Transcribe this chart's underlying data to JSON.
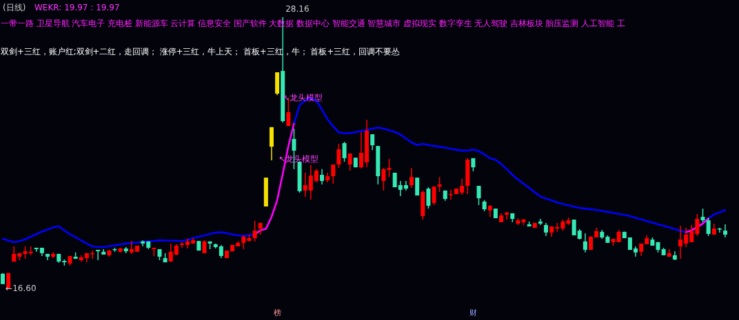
{
  "chart_data": {
    "type": "candlestick",
    "title": "(日线)",
    "subtitle": "WEKR: 19.97 : 19.97",
    "categories": [
      null,
      null,
      null,
      null,
      null,
      null,
      null,
      null,
      null,
      null,
      null,
      null,
      null,
      null,
      null,
      null,
      null,
      null,
      null,
      null,
      null,
      null,
      null,
      null,
      null,
      null,
      null,
      null,
      null,
      null,
      null,
      null,
      null,
      null,
      null,
      null,
      null,
      null,
      null,
      null,
      null,
      null,
      null,
      null,
      null,
      null,
      null,
      null,
      null,
      null,
      null,
      null,
      null,
      null,
      null,
      null,
      null,
      null,
      null,
      null,
      null,
      null,
      null,
      null,
      null,
      null,
      null,
      null,
      null,
      null,
      null,
      null,
      null,
      null,
      null,
      null,
      null,
      null,
      null,
      null,
      null,
      null,
      null,
      null,
      null,
      null,
      null,
      null,
      null,
      null,
      null,
      null,
      null,
      null,
      null,
      null,
      null,
      null,
      null,
      null,
      null,
      null,
      null,
      null,
      null,
      null,
      null,
      null,
      null,
      null,
      null,
      null,
      null,
      null,
      null,
      null,
      null,
      null,
      null,
      null,
      null,
      null,
      null,
      null,
      null,
      null,
      null,
      null,
      null,
      null
    ],
    "ohlc": [
      [
        17.22,
        17.25,
        16.78,
        16.78
      ],
      [
        16.6,
        17.25,
        16.6,
        17.25
      ],
      [
        17.74,
        18.39,
        17.74,
        18.07
      ],
      [
        17.95,
        18.1,
        17.8,
        18.1
      ],
      [
        18.07,
        18.39,
        17.86,
        18.18
      ],
      [
        18.1,
        18.39,
        18.01,
        18.16
      ],
      [
        18.33,
        18.33,
        18.16,
        18.27
      ],
      [
        18.33,
        18.33,
        17.98,
        18.1
      ],
      [
        18.07,
        18.07,
        17.8,
        17.95
      ],
      [
        17.95,
        18.13,
        17.89,
        18.07
      ],
      [
        18.07,
        18.07,
        17.69,
        17.74
      ],
      [
        17.77,
        17.83,
        17.57,
        17.71
      ],
      [
        17.66,
        17.98,
        17.57,
        17.98
      ],
      [
        17.95,
        18.13,
        17.86,
        17.86
      ],
      [
        17.8,
        18.01,
        17.74,
        17.92
      ],
      [
        17.89,
        18.1,
        17.71,
        18.1
      ],
      [
        18.07,
        18.21,
        17.86,
        18.1
      ],
      [
        18.24,
        18.24,
        17.8,
        18.18
      ],
      [
        18.16,
        18.27,
        18.04,
        18.04
      ],
      [
        18.01,
        18.24,
        17.95,
        18.21
      ],
      [
        18.27,
        18.33,
        18.16,
        18.24
      ],
      [
        18.16,
        18.33,
        18.13,
        18.3
      ],
      [
        18.3,
        18.36,
        18.1,
        18.18
      ],
      [
        18.13,
        18.62,
        18.07,
        18.27
      ],
      [
        18.16,
        18.42,
        18.16,
        18.42
      ],
      [
        18.6,
        18.65,
        18.39,
        18.51
      ],
      [
        18.6,
        18.6,
        18.27,
        18.33
      ],
      [
        18.27,
        18.33,
        17.98,
        18.33
      ],
      [
        18.27,
        18.27,
        17.8,
        17.95
      ],
      [
        17.89,
        18.1,
        17.71,
        17.71
      ],
      [
        17.74,
        18.51,
        17.74,
        18.16
      ],
      [
        18.04,
        18.48,
        18.01,
        18.42
      ],
      [
        18.45,
        18.57,
        18.33,
        18.51
      ],
      [
        18.45,
        18.71,
        18.3,
        18.6
      ],
      [
        18.51,
        18.74,
        18.51,
        18.65
      ],
      [
        18.62,
        18.62,
        18.21,
        18.21
      ],
      [
        18.1,
        18.65,
        18.1,
        18.6
      ],
      [
        18.6,
        18.6,
        18.27,
        18.51
      ],
      [
        18.48,
        18.51,
        18.3,
        18.36
      ],
      [
        18.39,
        18.45,
        17.89,
        17.98
      ],
      [
        17.89,
        18.21,
        17.89,
        18.21
      ],
      [
        18.18,
        18.45,
        18.18,
        18.45
      ],
      [
        18.39,
        18.6,
        18.39,
        18.54
      ],
      [
        18.54,
        18.86,
        18.27,
        18.8
      ],
      [
        18.62,
        18.89,
        18.6,
        18.74
      ],
      [
        18.74,
        19.48,
        18.6,
        19.06
      ],
      [
        19.15,
        19.39,
        18.89,
        19.39
      ],
      [
        20.09,
        21.32,
        20.09,
        21.32
      ],
      [
        22.64,
        23.47,
        22.06,
        23.47
      ],
      [
        24.9,
        25.81,
        24.84,
        25.81
      ],
      [
        25.87,
        28.16,
        23.67,
        23.73
      ],
      [
        23.52,
        24.73,
        23.52,
        24.11
      ],
      [
        22.97,
        23.41,
        21.68,
        22.47
      ],
      [
        22.0,
        22.0,
        20.68,
        20.74
      ],
      [
        20.77,
        21.53,
        20.5,
        21.0
      ],
      [
        20.77,
        21.85,
        20.38,
        21.41
      ],
      [
        21.18,
        21.68,
        21.12,
        21.62
      ],
      [
        21.44,
        21.68,
        21.03,
        21.18
      ],
      [
        21.21,
        21.53,
        21.12,
        21.38
      ],
      [
        21.38,
        21.88,
        21.06,
        21.88
      ],
      [
        21.88,
        22.76,
        21.73,
        22.53
      ],
      [
        22.79,
        22.85,
        22.0,
        22.15
      ],
      [
        21.88,
        22.35,
        21.62,
        22.35
      ],
      [
        22.17,
        22.17,
        21.76,
        21.76
      ],
      [
        21.76,
        23.26,
        21.71,
        22.38
      ],
      [
        21.97,
        23.79,
        21.76,
        23.32
      ],
      [
        23.17,
        23.17,
        22.5,
        22.7
      ],
      [
        22.67,
        22.67,
        21.03,
        21.38
      ],
      [
        21.18,
        21.73,
        20.77,
        21.68
      ],
      [
        21.65,
        22.12,
        21.35,
        21.73
      ],
      [
        21.53,
        21.53,
        20.91,
        20.91
      ],
      [
        21.0,
        21.18,
        20.53,
        20.8
      ],
      [
        21.0,
        21.18,
        20.77,
        20.85
      ],
      [
        21.0,
        21.73,
        20.88,
        21.35
      ],
      [
        21.32,
        21.32,
        20.56,
        20.56
      ],
      [
        19.68,
        20.77,
        19.53,
        20.71
      ],
      [
        20.85,
        20.91,
        20.0,
        20.12
      ],
      [
        20.24,
        20.94,
        20.15,
        20.94
      ],
      [
        20.94,
        21.35,
        20.71,
        21.03
      ],
      [
        20.77,
        20.77,
        20.33,
        20.41
      ],
      [
        20.59,
        20.8,
        20.38,
        20.62
      ],
      [
        20.62,
        20.85,
        20.62,
        20.85
      ],
      [
        20.68,
        21.27,
        20.59,
        20.97
      ],
      [
        20.97,
        22.15,
        20.62,
        22.09
      ],
      [
        22.15,
        22.15,
        21.59,
        21.76
      ],
      [
        20.97,
        20.97,
        20.15,
        20.44
      ],
      [
        20.3,
        20.36,
        19.89,
        19.97
      ],
      [
        19.92,
        20.15,
        19.65,
        20.12
      ],
      [
        20.0,
        20.0,
        19.59,
        19.59
      ],
      [
        19.42,
        19.8,
        19.42,
        19.71
      ],
      [
        19.74,
        19.86,
        19.53,
        19.83
      ],
      [
        19.8,
        19.8,
        19.42,
        19.56
      ],
      [
        19.36,
        19.59,
        19.3,
        19.5
      ],
      [
        19.42,
        19.56,
        19.3,
        19.53
      ],
      [
        19.33,
        19.45,
        19.24,
        19.24
      ],
      [
        19.18,
        19.39,
        19.18,
        19.39
      ],
      [
        19.45,
        19.56,
        19.3,
        19.36
      ],
      [
        19.3,
        19.39,
        18.83,
        18.98
      ],
      [
        18.98,
        19.24,
        18.8,
        19.24
      ],
      [
        19.15,
        19.39,
        19.01,
        19.21
      ],
      [
        19.15,
        19.53,
        19.06,
        19.45
      ],
      [
        19.36,
        19.62,
        19.3,
        19.5
      ],
      [
        19.53,
        19.53,
        18.86,
        18.86
      ],
      [
        19.06,
        19.12,
        18.68,
        18.71
      ],
      [
        18.6,
        18.95,
        18.13,
        18.24
      ],
      [
        18.24,
        18.83,
        18.24,
        18.8
      ],
      [
        18.77,
        19.18,
        18.77,
        19.04
      ],
      [
        19.01,
        19.09,
        18.71,
        18.77
      ],
      [
        18.8,
        18.86,
        18.54,
        18.54
      ],
      [
        18.57,
        18.71,
        18.42,
        18.71
      ],
      [
        18.57,
        19.09,
        18.57,
        19.01
      ],
      [
        19.01,
        19.01,
        18.74,
        18.74
      ],
      [
        18.77,
        18.77,
        18.24,
        18.24
      ],
      [
        18.3,
        18.39,
        17.95,
        18.13
      ],
      [
        18.16,
        18.51,
        17.98,
        18.51
      ],
      [
        18.48,
        18.86,
        18.48,
        18.74
      ],
      [
        18.68,
        18.77,
        18.42,
        18.42
      ],
      [
        18.57,
        18.57,
        18.13,
        18.24
      ],
      [
        18.27,
        18.33,
        18.01,
        18.01
      ],
      [
        17.95,
        18.27,
        17.95,
        18.1
      ],
      [
        18.01,
        18.18,
        17.8,
        17.83
      ],
      [
        18.39,
        19.27,
        17.86,
        18.68
      ],
      [
        18.51,
        19.18,
        18.36,
        18.89
      ],
      [
        18.57,
        19.3,
        18.57,
        19.04
      ],
      [
        18.92,
        19.77,
        18.83,
        19.56
      ],
      [
        19.65,
        20.0,
        19.42,
        19.5
      ],
      [
        19.5,
        19.59,
        18.83,
        18.92
      ],
      [
        18.89,
        19.36,
        18.89,
        19.15
      ],
      [
        19.15,
        19.18,
        18.98,
        19.12
      ],
      [
        19.06,
        19.33,
        18.77,
        18.89
      ]
    ],
    "colors": [
      "#35e8b4",
      "#ff0000",
      "#ff0000",
      "#ff0000",
      "#ff0000",
      "#ff0000",
      "#35e8b4",
      "#35e8b4",
      "#35e8b4",
      "#ff0000",
      "#35e8b4",
      "#35e8b4",
      "#ff0000",
      "#35e8b4",
      "#ff0000",
      "#ff0000",
      "#ff0000",
      "#35e8b4",
      "#35e8b4",
      "#ff0000",
      "#35e8b4",
      "#ff0000",
      "#35e8b4",
      "#ff0000",
      "#ff0000",
      "#35e8b4",
      "#35e8b4",
      "#ff0000",
      "#35e8b4",
      "#35e8b4",
      "#ff0000",
      "#ff0000",
      "#ff0000",
      "#ff0000",
      "#ff0000",
      "#35e8b4",
      "#ff0000",
      "#35e8b4",
      "#35e8b4",
      "#35e8b4",
      "#ff0000",
      "#ff0000",
      "#ff0000",
      "#ff0000",
      "#ff0000",
      "#ff0000",
      "#ff0000",
      "#f5e000",
      "#f5e000",
      "#f5e000",
      "#35e8b4",
      "#ff0000",
      "#35e8b4",
      "#35e8b4",
      "#ff0000",
      "#ff0000",
      "#ff0000",
      "#35e8b4",
      "#ff0000",
      "#ff0000",
      "#ff0000",
      "#35e8b4",
      "#ff0000",
      "#35e8b4",
      "#ff0000",
      "#ff0000",
      "#35e8b4",
      "#35e8b4",
      "#ff0000",
      "#ff0000",
      "#35e8b4",
      "#35e8b4",
      "#35e8b4",
      "#ff0000",
      "#35e8b4",
      "#ff0000",
      "#35e8b4",
      "#ff0000",
      "#ff0000",
      "#35e8b4",
      "#ff0000",
      "#ff0000",
      "#ff0000",
      "#ff0000",
      "#35e8b4",
      "#35e8b4",
      "#35e8b4",
      "#ff0000",
      "#35e8b4",
      "#ff0000",
      "#ff0000",
      "#35e8b4",
      "#ff0000",
      "#ff0000",
      "#35e8b4",
      "#ff0000",
      "#35e8b4",
      "#35e8b4",
      "#ff0000",
      "#ff0000",
      "#ff0000",
      "#ff0000",
      "#35e8b4",
      "#35e8b4",
      "#35e8b4",
      "#ff0000",
      "#ff0000",
      "#35e8b4",
      "#35e8b4",
      "#ff0000",
      "#ff0000",
      "#35e8b4",
      "#35e8b4",
      "#35e8b4",
      "#ff0000",
      "#ff0000",
      "#35e8b4",
      "#35e8b4",
      "#35e8b4",
      "#ff0000",
      "#35e8b4",
      "#ff0000",
      "#ff0000",
      "#ff0000",
      "#ff0000",
      "#35e8b4",
      "#35e8b4",
      "#ff0000",
      "#35e8b4",
      "#35e8b4"
    ],
    "series": [
      {
        "type": "line",
        "color": "#0000ff",
        "values": [
          18.71,
          18.64,
          18.57,
          18.62,
          18.69,
          18.8,
          18.91,
          19.02,
          19.11,
          19.2,
          19.25,
          19.07,
          18.91,
          18.78,
          18.64,
          18.51,
          18.39,
          18.37,
          18.36,
          18.4,
          18.43,
          18.47,
          18.51,
          18.53,
          18.55,
          18.58,
          18.6,
          18.62,
          18.65,
          18.64,
          18.64,
          18.63,
          18.62,
          18.67,
          18.74,
          18.8,
          18.86,
          18.92,
          18.98,
          18.99,
          18.95,
          18.9,
          18.86,
          18.84,
          18.87,
          18.91,
          null,
          null,
          null,
          null,
          null,
          null,
          23.62,
          24.41,
          24.61,
          24.72,
          24.6,
          24.22,
          23.8,
          23.51,
          23.25,
          23.21,
          23.22,
          23.26,
          23.3,
          23.35,
          23.41,
          23.46,
          23.41,
          23.34,
          23.27,
          23.16,
          22.99,
          22.82,
          22.71,
          22.76,
          22.71,
          22.67,
          22.64,
          22.6,
          22.55,
          22.51,
          22.47,
          22.47,
          22.52,
          22.45,
          22.3,
          22.15,
          22.08,
          21.9,
          21.68,
          21.44,
          21.24,
          21.06,
          20.88,
          20.69,
          20.52,
          20.43,
          20.35,
          20.26,
          20.19,
          20.14,
          20.08,
          20.03,
          20.0,
          19.97,
          19.94,
          19.9,
          19.86,
          19.82,
          19.77,
          19.73,
          19.68,
          19.61,
          19.54,
          19.47,
          19.4,
          19.33,
          19.27,
          19.2,
          19.12,
          19.05,
          18.99,
          19.08,
          19.21,
          19.36,
          19.58,
          19.75,
          19.84,
          19.94
        ]
      },
      {
        "type": "line",
        "color": "#ff00ff",
        "values": [
          null,
          null,
          null,
          null,
          null,
          null,
          null,
          null,
          null,
          null,
          null,
          null,
          null,
          null,
          null,
          null,
          null,
          null,
          null,
          null,
          null,
          null,
          null,
          null,
          null,
          null,
          null,
          null,
          null,
          null,
          null,
          null,
          null,
          null,
          null,
          null,
          null,
          null,
          null,
          null,
          null,
          null,
          null,
          null,
          null,
          18.91,
          19.07,
          19.14,
          19.65,
          20.36,
          21.48,
          22.66,
          23.62,
          null,
          null,
          null,
          null,
          null,
          null,
          null,
          null,
          null,
          null,
          null,
          null,
          null,
          null,
          null,
          null,
          null,
          null,
          null,
          null,
          null,
          null,
          null,
          null,
          null,
          null,
          null,
          null,
          null,
          null,
          null,
          null,
          null,
          null,
          null,
          null,
          null,
          null,
          null,
          null,
          null,
          null,
          null,
          null,
          null,
          null,
          null,
          null,
          null,
          null,
          null,
          null,
          null,
          null,
          null,
          null,
          null,
          null,
          null,
          null,
          null,
          null,
          null,
          null,
          null,
          null,
          null,
          null,
          null,
          18.99,
          19.08,
          19.21,
          19.36,
          19.58,
          null,
          null,
          null
        ]
      }
    ],
    "annotations": [
      "一带一路 卫星导航 汽车电子 充电桩 新能源车 云计算 信息安全 国产软件 大数据 数据中心 智能交通 智慧城市 虚拟现实 数字孪生 无人驾驶 吉林板块 胎压监测 人工智能 工",
      "双剑+三红，账户红;双剑+二红，走回调； 涨停+三红，牛上天； 首板+三红，牛； 首板+三红，回调不要怂",
      "28.16",
      "←16.60",
      "↖龙头模型",
      "↖龙头模型",
      "榜",
      "财"
    ]
  }
}
